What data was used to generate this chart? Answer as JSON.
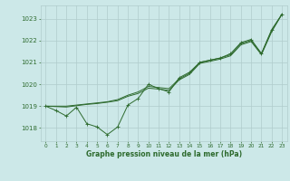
{
  "background_color": "#cce8e8",
  "grid_color": "#b0cccc",
  "line_color": "#2d6a2d",
  "title": "Graphe pression niveau de la mer (hPa)",
  "xlim": [
    -0.5,
    23.5
  ],
  "ylim": [
    1017.4,
    1023.6
  ],
  "yticks": [
    1018,
    1019,
    1020,
    1021,
    1022,
    1023
  ],
  "xticks": [
    0,
    1,
    2,
    3,
    4,
    5,
    6,
    7,
    8,
    9,
    10,
    11,
    12,
    13,
    14,
    15,
    16,
    17,
    18,
    19,
    20,
    21,
    22,
    23
  ],
  "series_marker": {
    "x": [
      0,
      1,
      2,
      3,
      4,
      5,
      6,
      7,
      8,
      9,
      10,
      11,
      12,
      13,
      14,
      15,
      16,
      17,
      18,
      19,
      20,
      21,
      22,
      23
    ],
    "y": [
      1019.0,
      1018.8,
      1018.55,
      1018.95,
      1018.2,
      1018.05,
      1017.7,
      1018.05,
      1019.05,
      1019.35,
      1020.0,
      1019.8,
      1019.65,
      1020.3,
      1020.55,
      1021.0,
      1021.1,
      1021.2,
      1021.4,
      1021.9,
      1022.05,
      1021.4,
      1022.5,
      1023.2
    ]
  },
  "series_smooth1": {
    "x": [
      0,
      1,
      2,
      3,
      4,
      5,
      6,
      7,
      8,
      9,
      10,
      11,
      12,
      13,
      14,
      15,
      16,
      17,
      18,
      19,
      20,
      21,
      22,
      23
    ],
    "y": [
      1019.0,
      1019.0,
      1019.0,
      1019.05,
      1019.1,
      1019.15,
      1019.2,
      1019.3,
      1019.5,
      1019.65,
      1019.9,
      1019.85,
      1019.8,
      1020.25,
      1020.5,
      1021.0,
      1021.1,
      1021.2,
      1021.35,
      1021.85,
      1022.0,
      1021.4,
      1022.45,
      1023.2
    ]
  },
  "series_smooth2": {
    "x": [
      0,
      1,
      2,
      3,
      4,
      5,
      6,
      7,
      8,
      9,
      10,
      11,
      12,
      13,
      14,
      15,
      16,
      17,
      18,
      19,
      20,
      21,
      22,
      23
    ],
    "y": [
      1019.0,
      1018.98,
      1018.96,
      1019.02,
      1019.08,
      1019.12,
      1019.18,
      1019.25,
      1019.45,
      1019.58,
      1019.82,
      1019.78,
      1019.72,
      1020.2,
      1020.45,
      1020.95,
      1021.05,
      1021.15,
      1021.3,
      1021.8,
      1021.95,
      1021.35,
      1022.4,
      1023.2
    ]
  }
}
